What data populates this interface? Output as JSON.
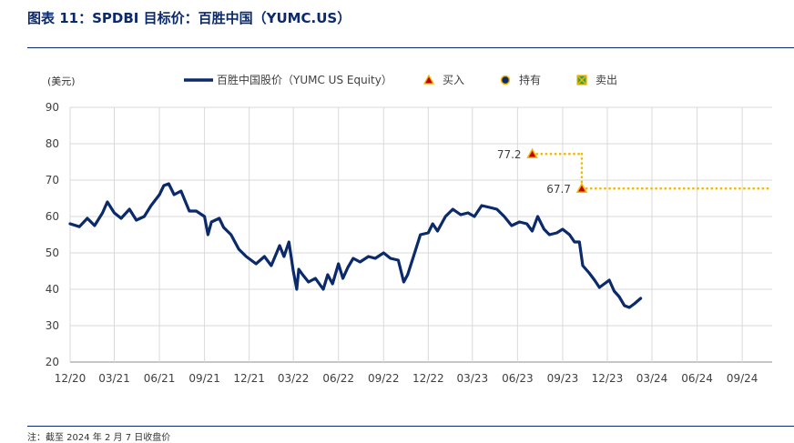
{
  "figure_title": "图表 11：SPDBI 目标价：百胜中国（YUMC.US）",
  "note": "注：截至 2024 年 2 月 7 日收盘价",
  "colors": {
    "line": "#0b2a6b",
    "target": "#f5b800",
    "buy_marker": "#c0000c",
    "hold_marker": "#0b2a6b",
    "sell_marker": "#3aa14a",
    "grid": "#d9d9d9"
  },
  "chart_data": {
    "type": "line",
    "ylabel": "(美元)",
    "ylim": [
      20,
      90
    ],
    "yticks": [
      20,
      30,
      40,
      50,
      60,
      70,
      80,
      90
    ],
    "xlim": [
      "2020-12",
      "2024-11"
    ],
    "xticks": [
      "12/20",
      "03/21",
      "06/21",
      "09/21",
      "12/21",
      "03/22",
      "06/22",
      "09/22",
      "12/22",
      "03/23",
      "06/23",
      "09/23",
      "12/23",
      "03/24",
      "06/24",
      "09/24"
    ],
    "grid": true,
    "legend": {
      "placement": "top",
      "entries": [
        {
          "label": "百胜中国股价（YUMC US Equity）",
          "kind": "line"
        },
        {
          "label": "买入",
          "kind": "buy"
        },
        {
          "label": "持有",
          "kind": "hold"
        },
        {
          "label": "卖出",
          "kind": "sell"
        }
      ]
    },
    "series": [
      {
        "name": "百胜中国股价（YUMC US Equity）",
        "points": [
          [
            "2020-12-01",
            58
          ],
          [
            "2020-12-20",
            57.2
          ],
          [
            "2021-01-05",
            59.5
          ],
          [
            "2021-01-20",
            57.5
          ],
          [
            "2021-02-05",
            61
          ],
          [
            "2021-02-15",
            64
          ],
          [
            "2021-03-01",
            61
          ],
          [
            "2021-03-15",
            59.5
          ],
          [
            "2021-04-01",
            62
          ],
          [
            "2021-04-15",
            59
          ],
          [
            "2021-05-01",
            60
          ],
          [
            "2021-05-15",
            63
          ],
          [
            "2021-06-01",
            66
          ],
          [
            "2021-06-10",
            68.5
          ],
          [
            "2021-06-20",
            69
          ],
          [
            "2021-07-01",
            66
          ],
          [
            "2021-07-15",
            67
          ],
          [
            "2021-08-01",
            61.5
          ],
          [
            "2021-08-15",
            61.5
          ],
          [
            "2021-09-01",
            60
          ],
          [
            "2021-09-08",
            55
          ],
          [
            "2021-09-15",
            58.5
          ],
          [
            "2021-10-01",
            59.5
          ],
          [
            "2021-10-10",
            57
          ],
          [
            "2021-10-25",
            55
          ],
          [
            "2021-11-10",
            51
          ],
          [
            "2021-11-25",
            49
          ],
          [
            "2021-12-15",
            47
          ],
          [
            "2022-01-01",
            49
          ],
          [
            "2022-01-15",
            46.5
          ],
          [
            "2022-02-01",
            52
          ],
          [
            "2022-02-10",
            49
          ],
          [
            "2022-02-20",
            53
          ],
          [
            "2022-03-01",
            45
          ],
          [
            "2022-03-08",
            40
          ],
          [
            "2022-03-12",
            45.5
          ],
          [
            "2022-03-20",
            44
          ],
          [
            "2022-04-01",
            42
          ],
          [
            "2022-04-15",
            43
          ],
          [
            "2022-05-01",
            40
          ],
          [
            "2022-05-10",
            44
          ],
          [
            "2022-05-20",
            41.5
          ],
          [
            "2022-06-01",
            47
          ],
          [
            "2022-06-10",
            43
          ],
          [
            "2022-06-20",
            46
          ],
          [
            "2022-07-01",
            48.5
          ],
          [
            "2022-07-15",
            47.5
          ],
          [
            "2022-08-01",
            49
          ],
          [
            "2022-08-15",
            48.5
          ],
          [
            "2022-09-01",
            50
          ],
          [
            "2022-09-15",
            48.5
          ],
          [
            "2022-10-01",
            48
          ],
          [
            "2022-10-12",
            42
          ],
          [
            "2022-10-20",
            44
          ],
          [
            "2022-11-01",
            49
          ],
          [
            "2022-11-15",
            55
          ],
          [
            "2022-12-01",
            55.5
          ],
          [
            "2022-12-10",
            58
          ],
          [
            "2022-12-20",
            56
          ],
          [
            "2023-01-05",
            60
          ],
          [
            "2023-01-20",
            62
          ],
          [
            "2023-02-05",
            60.5
          ],
          [
            "2023-02-20",
            61
          ],
          [
            "2023-03-05",
            60
          ],
          [
            "2023-03-20",
            63
          ],
          [
            "2023-04-05",
            62.5
          ],
          [
            "2023-04-20",
            62
          ],
          [
            "2023-05-05",
            60
          ],
          [
            "2023-05-20",
            57.5
          ],
          [
            "2023-06-05",
            58.5
          ],
          [
            "2023-06-20",
            58
          ],
          [
            "2023-07-01",
            56
          ],
          [
            "2023-07-12",
            60
          ],
          [
            "2023-07-25",
            56.5
          ],
          [
            "2023-08-05",
            55
          ],
          [
            "2023-08-20",
            55.5
          ],
          [
            "2023-09-01",
            56.5
          ],
          [
            "2023-09-15",
            55
          ],
          [
            "2023-09-25",
            53
          ],
          [
            "2023-10-05",
            53
          ],
          [
            "2023-10-12",
            46.5
          ],
          [
            "2023-10-25",
            44.5
          ],
          [
            "2023-11-05",
            42.5
          ],
          [
            "2023-11-15",
            40.5
          ],
          [
            "2023-11-25",
            41.5
          ],
          [
            "2023-12-05",
            42.5
          ],
          [
            "2023-12-15",
            39.5
          ],
          [
            "2023-12-25",
            38
          ],
          [
            "2024-01-05",
            35.5
          ],
          [
            "2024-01-15",
            35
          ],
          [
            "2024-01-25",
            36
          ],
          [
            "2024-02-07",
            37.5
          ]
        ]
      }
    ],
    "target_prices": [
      {
        "date": "2023-07-01",
        "value": 77.2,
        "label": "77.2",
        "rating": "buy",
        "until": "2023-10-10"
      },
      {
        "date": "2023-10-10",
        "value": 67.7,
        "label": "67.7",
        "rating": "buy",
        "until": "2024-11-01"
      }
    ]
  }
}
